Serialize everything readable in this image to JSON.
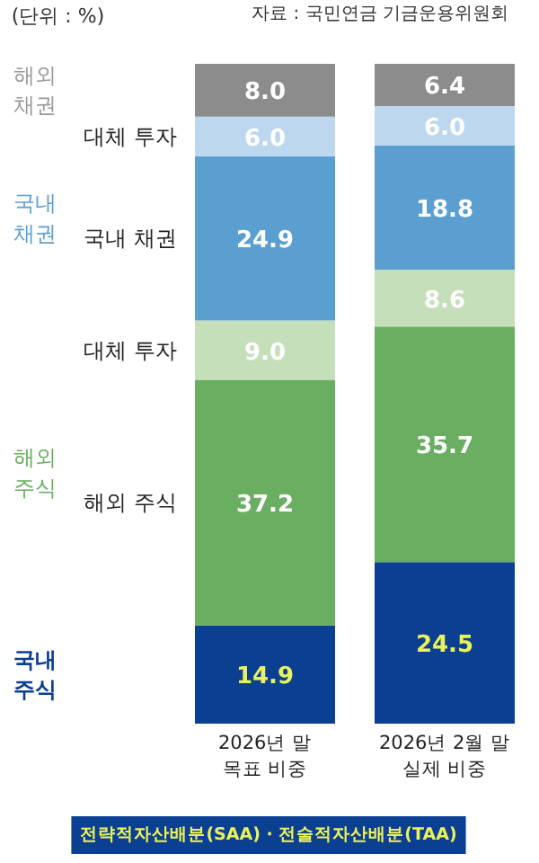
{
  "chart_data": {
    "type": "bar",
    "stacked": true,
    "title": "(단위 : %)",
    "categories": [
      "2026년 말\n목표 비중",
      "2026년 2월 말\n실제 비중"
    ],
    "series": [
      {
        "name": "국내 주식",
        "color": "#0b3f92",
        "values": [
          14.9,
          24.5
        ],
        "value_labels": [
          "14.9",
          "24.5"
        ]
      },
      {
        "name": "해외 주식",
        "color": "#6aae62",
        "values": [
          37.2,
          35.7
        ],
        "value_labels": [
          "37.2",
          "35.7"
        ]
      },
      {
        "name": "대체 투자",
        "color": "#c6dfbb",
        "values": [
          9.0,
          8.6
        ],
        "value_labels": [
          "9.0",
          "8.6"
        ]
      },
      {
        "name": "국내 채권",
        "color": "#5b9fd1",
        "values": [
          24.9,
          18.8
        ],
        "value_labels": [
          "24.9",
          "18.8"
        ]
      },
      {
        "name": "대체 투자",
        "color": "#bdd8ee",
        "values": [
          6.0,
          6.0
        ],
        "value_labels": [
          "6.0",
          "6.0"
        ]
      },
      {
        "name": "해외 채권",
        "color": "#8c8c8c",
        "values": [
          8.0,
          6.4
        ],
        "value_labels": [
          "8.0",
          "6.4"
        ]
      }
    ],
    "annotations": [
      "자료 : 국민연금 기금운용위원회",
      "국내 채권",
      "해외 주식",
      "전략적자산배분(SAA) · 전술적자산배분(TAA)"
    ]
  }
}
